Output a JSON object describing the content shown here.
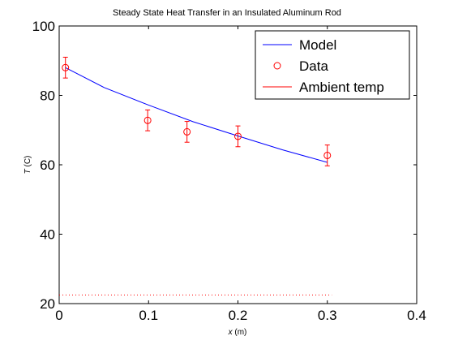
{
  "chart_data": {
    "type": "line",
    "title": "Steady State Heat Transfer in an Insulated Aluminum Rod",
    "xlabel_var": "x",
    "xlabel_unit": " (m)",
    "ylabel_var": "T",
    "ylabel_unit": " (C)",
    "xlim": [
      0,
      0.4
    ],
    "ylim": [
      20,
      100
    ],
    "xticks": [
      0,
      0.1,
      0.2,
      0.3,
      0.4
    ],
    "xtick_labels": [
      "0",
      "0.1",
      "0.2",
      "0.3",
      "0.4"
    ],
    "yticks": [
      20,
      40,
      60,
      80,
      100
    ],
    "ytick_labels": [
      "20",
      "40",
      "60",
      "80",
      "100"
    ],
    "grid": false,
    "legend_position": "top-right",
    "series": [
      {
        "name": "Model",
        "kind": "line",
        "color": "#0000ff",
        "x": [
          0.007,
          0.05,
          0.1,
          0.15,
          0.2,
          0.25,
          0.3
        ],
        "y": [
          88,
          82.3,
          77.2,
          72.4,
          68.3,
          64.3,
          60.7
        ]
      },
      {
        "name": "Data",
        "kind": "errorbar",
        "color": "#ff0000",
        "x": [
          0.007,
          0.099,
          0.143,
          0.2,
          0.3
        ],
        "y": [
          88,
          72.8,
          69.5,
          68.2,
          62.7
        ],
        "err": [
          3,
          3,
          3,
          3,
          3
        ]
      },
      {
        "name": "Ambient temp",
        "kind": "dotted",
        "color": "#ff0000",
        "x": [
          0,
          0.305
        ],
        "y": [
          22.5,
          22.5
        ]
      }
    ]
  }
}
